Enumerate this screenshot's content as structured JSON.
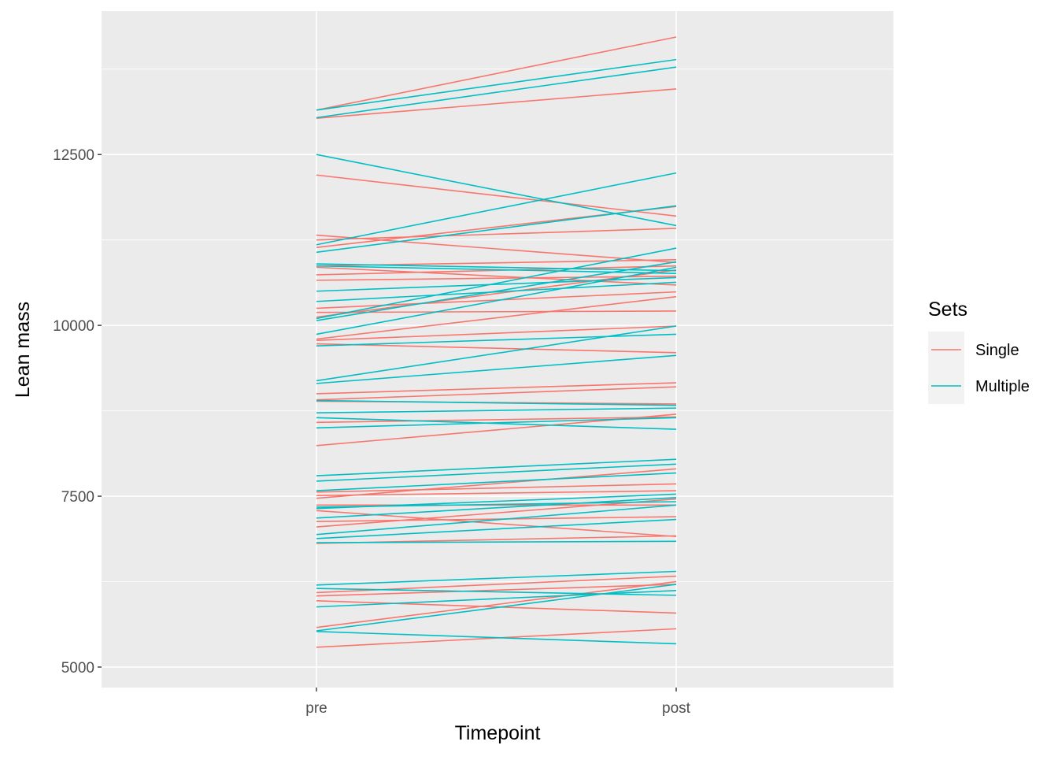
{
  "chart_data": {
    "type": "line",
    "xlabel": "Timepoint",
    "ylabel": "Lean mass",
    "categories": [
      "pre",
      "post"
    ],
    "ylim": [
      4700,
      14600
    ],
    "yticks": [
      5000,
      7500,
      10000,
      12500
    ],
    "grid": true,
    "legend": {
      "title": "Sets",
      "position": "right",
      "entries": [
        {
          "name": "Single",
          "color": "#F8766D"
        },
        {
          "name": "Multiple",
          "color": "#00BFC4"
        }
      ]
    },
    "series": [
      {
        "name": "Single",
        "color": "#F8766D",
        "lines": [
          [
            13150,
            14220
          ],
          [
            13030,
            13460
          ],
          [
            12200,
            11600
          ],
          [
            11320,
            10920
          ],
          [
            11250,
            11420
          ],
          [
            11140,
            11740
          ],
          [
            10870,
            10960
          ],
          [
            10850,
            10590
          ],
          [
            10740,
            10870
          ],
          [
            10660,
            10720
          ],
          [
            10250,
            10490
          ],
          [
            10190,
            10210
          ],
          [
            10120,
            10810
          ],
          [
            9800,
            10420
          ],
          [
            9780,
            9990
          ],
          [
            9730,
            9600
          ],
          [
            9000,
            9160
          ],
          [
            8910,
            9100
          ],
          [
            8890,
            8850
          ],
          [
            8580,
            8660
          ],
          [
            8240,
            8700
          ],
          [
            7560,
            7680
          ],
          [
            7510,
            7580
          ],
          [
            7470,
            7900
          ],
          [
            7370,
            7370
          ],
          [
            7290,
            6910
          ],
          [
            7130,
            7200
          ],
          [
            7050,
            7460
          ],
          [
            6810,
            6920
          ],
          [
            6090,
            6330
          ],
          [
            6040,
            6210
          ],
          [
            5970,
            5790
          ],
          [
            5580,
            6250
          ],
          [
            5290,
            5560
          ]
        ]
      },
      {
        "name": "Multiple",
        "color": "#00BFC4",
        "lines": [
          [
            13150,
            13890
          ],
          [
            13040,
            13780
          ],
          [
            12500,
            11460
          ],
          [
            11180,
            12230
          ],
          [
            11070,
            11750
          ],
          [
            10900,
            10800
          ],
          [
            10870,
            10760
          ],
          [
            10500,
            10700
          ],
          [
            10350,
            10630
          ],
          [
            10100,
            11130
          ],
          [
            10070,
            10930
          ],
          [
            9870,
            10850
          ],
          [
            9700,
            9870
          ],
          [
            9190,
            9990
          ],
          [
            9150,
            9560
          ],
          [
            8900,
            8830
          ],
          [
            8720,
            8790
          ],
          [
            8650,
            8480
          ],
          [
            8500,
            8650
          ],
          [
            7800,
            8040
          ],
          [
            7720,
            7970
          ],
          [
            7580,
            7840
          ],
          [
            7340,
            7420
          ],
          [
            7320,
            7530
          ],
          [
            7180,
            7480
          ],
          [
            6940,
            7370
          ],
          [
            6880,
            7160
          ],
          [
            6820,
            6840
          ],
          [
            6200,
            6400
          ],
          [
            6150,
            6050
          ],
          [
            5880,
            6120
          ],
          [
            5530,
            6210
          ],
          [
            5520,
            5340
          ]
        ]
      }
    ]
  }
}
